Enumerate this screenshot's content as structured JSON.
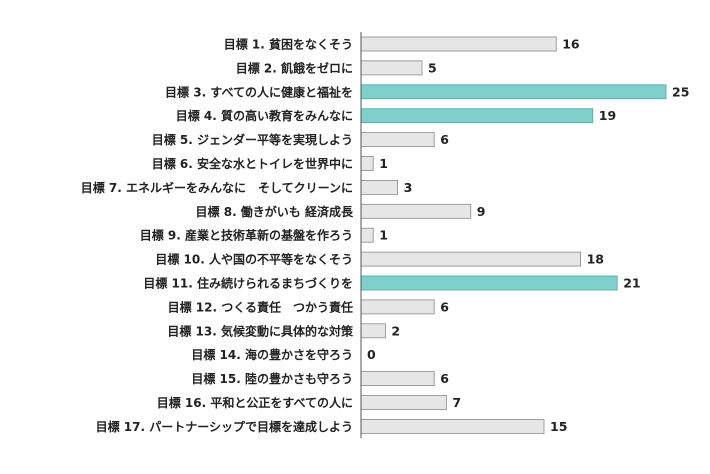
{
  "chart_data": {
    "type": "bar",
    "orientation": "horizontal",
    "title": "",
    "xlabel": "",
    "ylabel": "",
    "categories": [
      "目標 1.  貧困をなくそう",
      "目標 2.  飢餓をゼロに",
      "目標 3.  すべての人に健康と福祉を",
      "目標 4.  質の高い教育をみんなに",
      "目標 5.  ジェンダー平等を実現しよう",
      "目標 6.  安全な水とトイレを世界中に",
      "目標 7.  エネルギーをみんなに　そしてクリーンに",
      "目標 8.  働きがいも 経済成長",
      "目標 9.  産業と技術革新の基盤を作ろう",
      "目標 10.  人や国の不平等をなくそう",
      "目標 11.  住み続けられるまちづくりを",
      "目標 12.  つくる責任　つかう責任",
      "目標 13.  気候変動に具体的な対策",
      "目標 14.  海の豊かさを守ろう",
      "目標 15.  陸の豊かさも守ろう",
      "目標 16.  平和と公正をすべての人に",
      "目標 17.  パートナーシップで目標を達成しよう"
    ],
    "values": [
      16,
      5,
      25,
      19,
      6,
      1,
      3,
      9,
      1,
      18,
      21,
      6,
      2,
      0,
      6,
      7,
      15
    ],
    "highlighted": [
      false,
      false,
      true,
      true,
      false,
      false,
      false,
      false,
      false,
      false,
      true,
      false,
      false,
      false,
      false,
      false,
      false
    ],
    "xlim": [
      0,
      25
    ],
    "grid": false,
    "legend": "none",
    "colors": {
      "bar_default": "#e6e6e6",
      "bar_default_stroke": "#8a8a8a",
      "bar_highlight": "#7fcfca",
      "bar_highlight_stroke": "#4aa8a2",
      "axis": "#555555",
      "text": "#222222"
    }
  }
}
